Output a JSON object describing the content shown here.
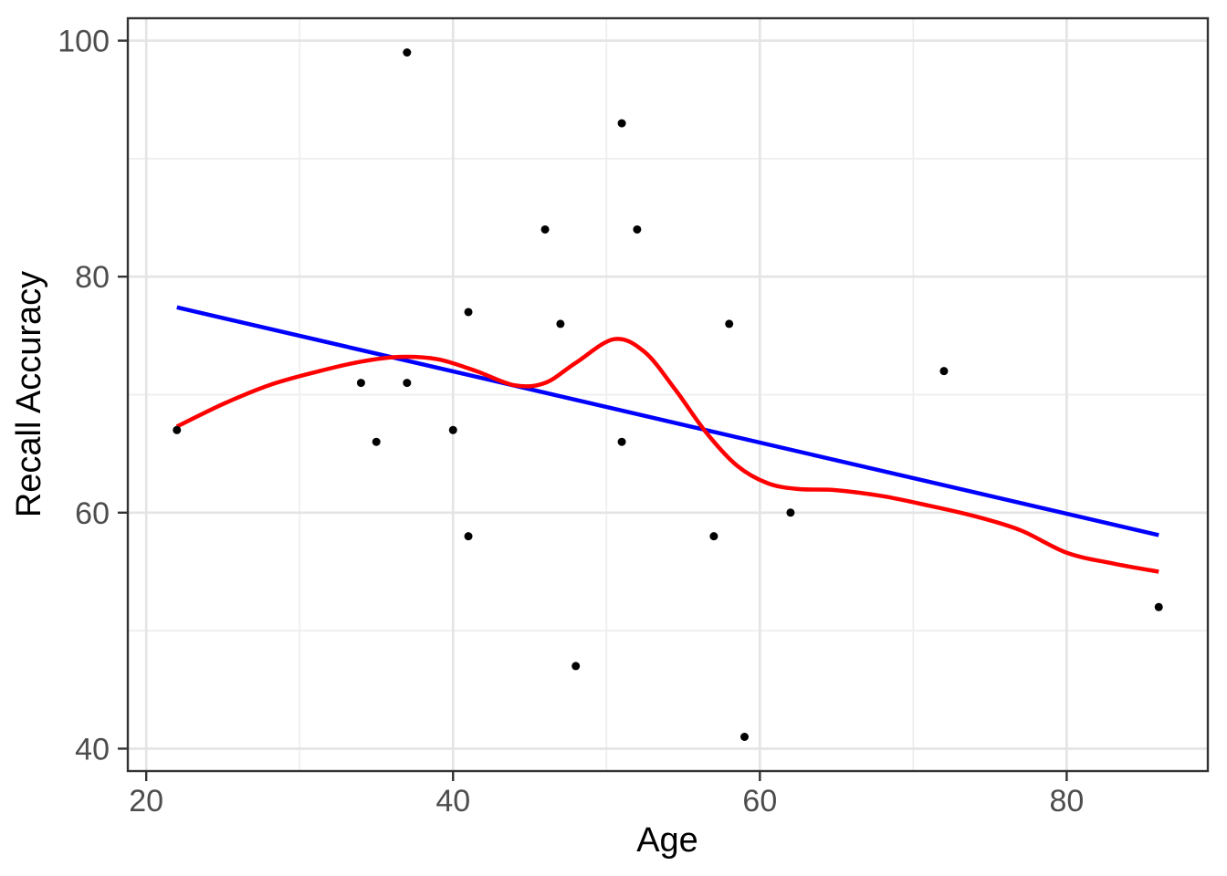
{
  "chart_data": {
    "type": "scatter",
    "title": "",
    "xlabel": "Age",
    "ylabel": "Recall Accuracy",
    "xlim": [
      18.8,
      89.2
    ],
    "ylim": [
      38.1,
      101.9
    ],
    "x_major_ticks": [
      20,
      40,
      60,
      80
    ],
    "x_minor_ticks": [
      30,
      50,
      70
    ],
    "y_major_ticks": [
      40,
      60,
      80,
      100
    ],
    "y_minor_ticks": [
      50,
      70,
      90
    ],
    "grid": "on",
    "legend": "none",
    "points": [
      {
        "x": 22,
        "y": 67
      },
      {
        "x": 34,
        "y": 71
      },
      {
        "x": 35,
        "y": 66
      },
      {
        "x": 37,
        "y": 71
      },
      {
        "x": 37,
        "y": 99
      },
      {
        "x": 40,
        "y": 67
      },
      {
        "x": 41,
        "y": 58
      },
      {
        "x": 41,
        "y": 77
      },
      {
        "x": 46,
        "y": 84
      },
      {
        "x": 47,
        "y": 76
      },
      {
        "x": 48,
        "y": 47
      },
      {
        "x": 51,
        "y": 66
      },
      {
        "x": 51,
        "y": 93
      },
      {
        "x": 52,
        "y": 84
      },
      {
        "x": 57,
        "y": 58
      },
      {
        "x": 58,
        "y": 76
      },
      {
        "x": 59,
        "y": 41
      },
      {
        "x": 62,
        "y": 60
      },
      {
        "x": 72,
        "y": 72
      },
      {
        "x": 86,
        "y": 52
      }
    ],
    "series": [
      {
        "name": "linear-fit",
        "type": "line",
        "color": "#0000ff",
        "x": [
          22,
          86
        ],
        "y": [
          77.4,
          58.1
        ]
      },
      {
        "name": "loess-fit",
        "type": "smooth-curve",
        "color": "#ff0000",
        "x": [
          22,
          25,
          28,
          31,
          34,
          36.5,
          39,
          41.5,
          44,
          46,
          48,
          50.5,
          52.5,
          54.5,
          56.5,
          58.5,
          60.5,
          62.5,
          65,
          68,
          71,
          74,
          77,
          80,
          83,
          86
        ],
        "y": [
          67.3,
          69.2,
          70.8,
          71.9,
          72.8,
          73.2,
          73.0,
          72.0,
          70.8,
          71.0,
          72.7,
          74.7,
          73.6,
          70.4,
          66.8,
          64.0,
          62.5,
          62.0,
          61.9,
          61.4,
          60.6,
          59.7,
          58.5,
          56.6,
          55.7,
          55.0
        ]
      }
    ],
    "style": {
      "point_color": "#000000",
      "point_radius": 4.5,
      "line_width": 4.5,
      "panel_background": "#ffffff",
      "panel_border_color": "#333333",
      "grid_major_color": "#e4e4e4",
      "grid_minor_color": "#eeeeee",
      "tick_mark_color": "#333333",
      "tick_label_color": "#4d4d4d",
      "axis_title_color": "#000000"
    }
  }
}
